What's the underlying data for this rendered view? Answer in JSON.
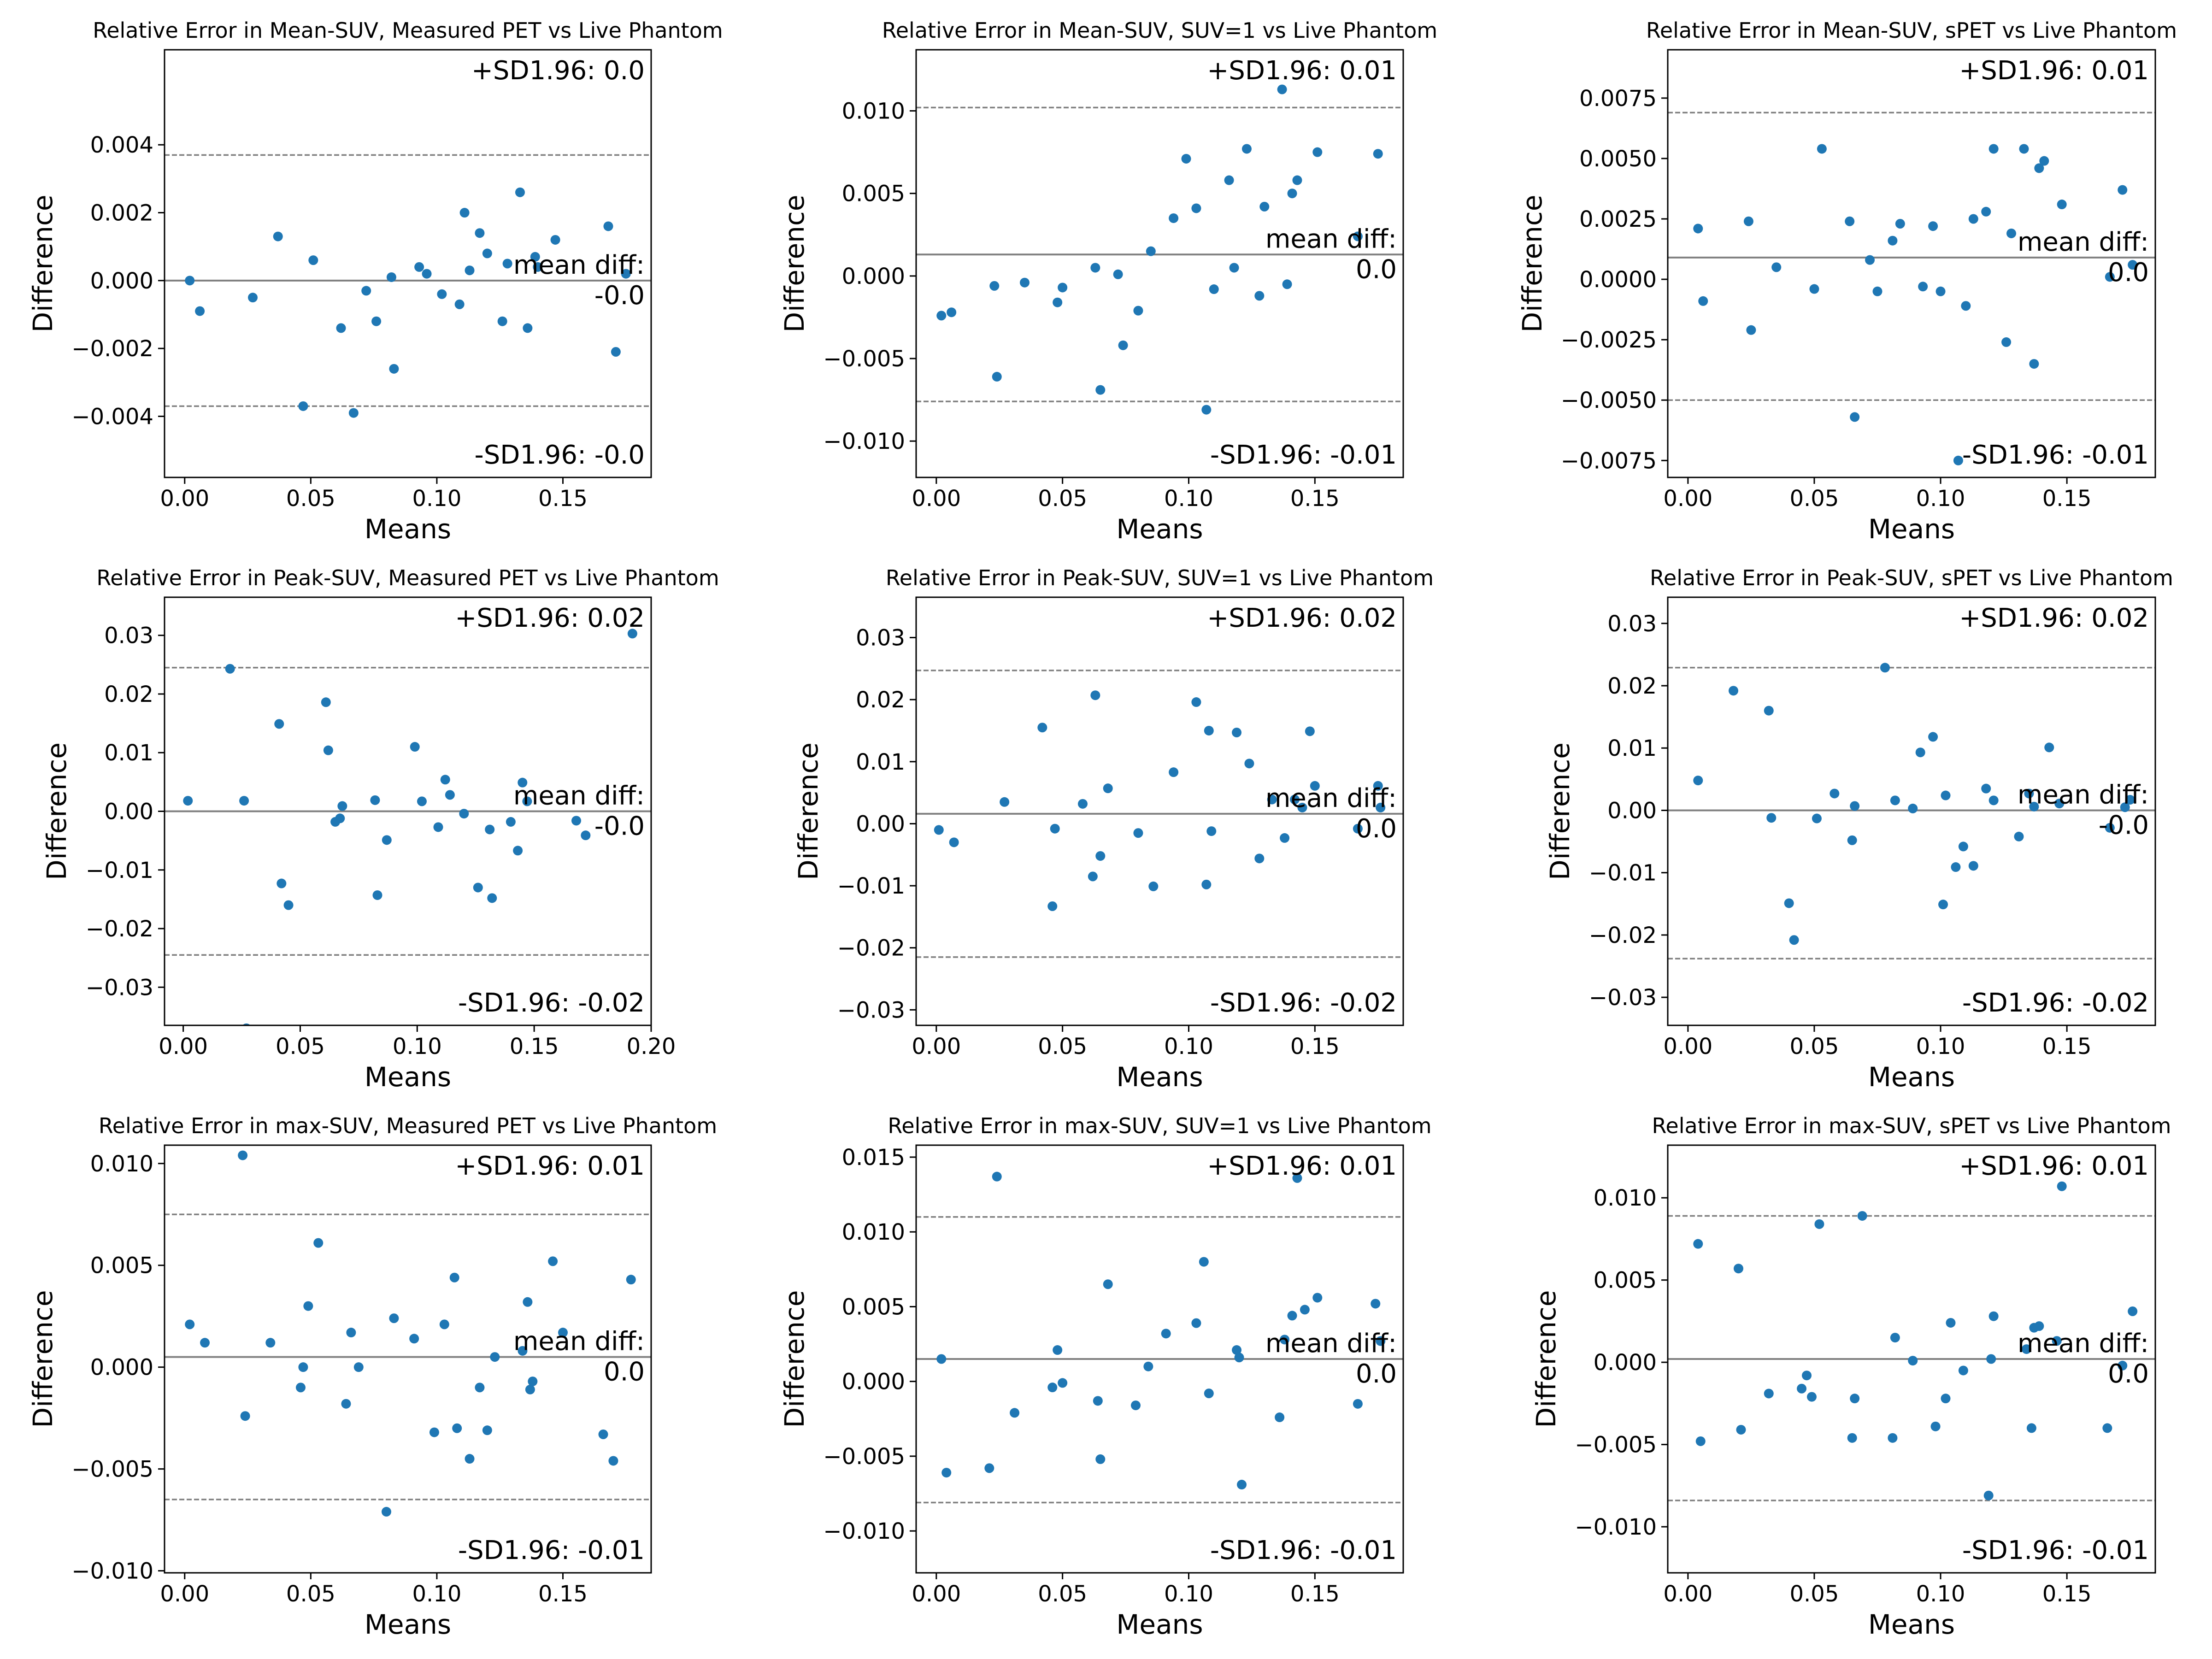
{
  "figure": {
    "background": "#ffffff",
    "point_color": "#1f77b4",
    "line_color": "#808080"
  },
  "chart_data": [
    {
      "type": "scatter",
      "title": "Relative Error in Mean-SUV, Measured PET vs Live Phantom",
      "xlabel": "Means",
      "ylabel": "Difference",
      "xlim": [
        -0.008,
        0.185
      ],
      "ylim": [
        -0.0058,
        0.0068
      ],
      "xticks": [
        0,
        0.05,
        0.1,
        0.15
      ],
      "xtick_labels": [
        "0.00",
        "0.05",
        "0.10",
        "0.15"
      ],
      "yticks": [
        -0.004,
        -0.002,
        0,
        0.002,
        0.004
      ],
      "ytick_labels": [
        "−0.004",
        "−0.002",
        "0.000",
        "0.002",
        "0.004"
      ],
      "mean_diff": 0.0,
      "upper_sd": 0.0037,
      "lower_sd": -0.0037,
      "upper_label": "+SD1.96: 0.0",
      "mean_label_1": "mean diff:",
      "mean_label_2": "-0.0",
      "lower_label": "-SD1.96: -0.0",
      "x": [
        0.002,
        0.006,
        0.027,
        0.037,
        0.047,
        0.051,
        0.062,
        0.067,
        0.072,
        0.076,
        0.082,
        0.083,
        0.093,
        0.096,
        0.102,
        0.109,
        0.111,
        0.113,
        0.117,
        0.12,
        0.126,
        0.128,
        0.133,
        0.136,
        0.139,
        0.14,
        0.147,
        0.168,
        0.171,
        0.175
      ],
      "y": [
        0.0,
        -0.0009,
        -0.0005,
        0.0013,
        -0.0037,
        0.0006,
        -0.0014,
        -0.0039,
        -0.0003,
        -0.0012,
        0.0001,
        -0.0026,
        0.0004,
        0.0002,
        -0.0004,
        -0.0007,
        0.002,
        0.0003,
        0.0014,
        0.0008,
        -0.0012,
        0.0005,
        0.0026,
        -0.0014,
        0.0007,
        0.0004,
        0.0012,
        0.0016,
        -0.0021,
        0.0002
      ]
    },
    {
      "type": "scatter",
      "title": "Relative Error in Mean-SUV, SUV=1 vs Live Phantom",
      "xlabel": "Means",
      "ylabel": "Difference",
      "xlim": [
        -0.008,
        0.185
      ],
      "ylim": [
        -0.0122,
        0.0137
      ],
      "xticks": [
        0,
        0.05,
        0.1,
        0.15
      ],
      "xtick_labels": [
        "0.00",
        "0.05",
        "0.10",
        "0.15"
      ],
      "yticks": [
        -0.01,
        -0.005,
        0,
        0.005,
        0.01
      ],
      "ytick_labels": [
        "−0.010",
        "−0.005",
        "0.000",
        "0.005",
        "0.010"
      ],
      "mean_diff": 0.0013,
      "upper_sd": 0.0102,
      "lower_sd": -0.0076,
      "upper_label": "+SD1.96: 0.01",
      "mean_label_1": "mean diff:",
      "mean_label_2": "0.0",
      "lower_label": "-SD1.96: -0.01",
      "x": [
        0.002,
        0.006,
        0.023,
        0.024,
        0.035,
        0.048,
        0.05,
        0.063,
        0.065,
        0.072,
        0.074,
        0.08,
        0.085,
        0.094,
        0.099,
        0.103,
        0.107,
        0.11,
        0.116,
        0.118,
        0.123,
        0.128,
        0.13,
        0.137,
        0.139,
        0.141,
        0.143,
        0.151,
        0.167,
        0.175
      ],
      "y": [
        -0.0024,
        -0.0022,
        -0.0006,
        -0.0061,
        -0.0004,
        -0.0016,
        -0.0007,
        0.0005,
        -0.0069,
        0.0001,
        -0.0042,
        -0.0021,
        0.0015,
        0.0035,
        0.0071,
        0.0041,
        -0.0081,
        -0.0008,
        0.0058,
        0.0005,
        0.0077,
        -0.0012,
        0.0042,
        0.0113,
        -0.0005,
        0.005,
        0.0058,
        0.0075,
        0.0024,
        0.0074
      ]
    },
    {
      "type": "scatter",
      "title": "Relative Error in Mean-SUV, sPET vs Live Phantom",
      "xlabel": "Means",
      "ylabel": "Difference",
      "xlim": [
        -0.008,
        0.185
      ],
      "ylim": [
        -0.0082,
        0.0095
      ],
      "xticks": [
        0,
        0.05,
        0.1,
        0.15
      ],
      "xtick_labels": [
        "0.00",
        "0.05",
        "0.10",
        "0.15"
      ],
      "yticks": [
        -0.0075,
        -0.005,
        -0.0025,
        0,
        0.0025,
        0.005,
        0.0075
      ],
      "ytick_labels": [
        "−0.0075",
        "−0.0050",
        "−0.0025",
        "0.0000",
        "0.0025",
        "0.0050",
        "0.0075"
      ],
      "mean_diff": 0.0009,
      "upper_sd": 0.0069,
      "lower_sd": -0.005,
      "upper_label": "+SD1.96: 0.01",
      "mean_label_1": "mean diff:",
      "mean_label_2": "0.0",
      "lower_label": "-SD1.96: -0.01",
      "x": [
        0.004,
        0.006,
        0.024,
        0.025,
        0.035,
        0.05,
        0.053,
        0.064,
        0.066,
        0.072,
        0.075,
        0.081,
        0.084,
        0.093,
        0.097,
        0.1,
        0.107,
        0.11,
        0.113,
        0.118,
        0.121,
        0.126,
        0.128,
        0.133,
        0.137,
        0.139,
        0.141,
        0.148,
        0.167,
        0.172,
        0.176
      ],
      "y": [
        0.0021,
        -0.0009,
        0.0024,
        -0.0021,
        0.0005,
        -0.0004,
        0.0054,
        0.0024,
        -0.0057,
        0.0008,
        -0.0005,
        0.0016,
        0.0023,
        -0.0003,
        0.0022,
        -0.0005,
        -0.0075,
        -0.0011,
        0.0025,
        0.0028,
        0.0054,
        -0.0026,
        0.0019,
        0.0054,
        -0.0035,
        0.0046,
        0.0049,
        0.0031,
        0.0001,
        0.0037,
        0.0006
      ]
    },
    {
      "type": "scatter",
      "title": "Relative Error in Peak-SUV, Measured PET vs Live Phantom",
      "xlabel": "Means",
      "ylabel": "Difference",
      "xlim": [
        -0.008,
        0.2
      ],
      "ylim": [
        -0.0365,
        0.0365
      ],
      "xticks": [
        0,
        0.05,
        0.1,
        0.15,
        0.2
      ],
      "xtick_labels": [
        "0.00",
        "0.05",
        "0.10",
        "0.15",
        "0.20"
      ],
      "yticks": [
        -0.03,
        -0.02,
        -0.01,
        0,
        0.01,
        0.02,
        0.03
      ],
      "ytick_labels": [
        "−0.03",
        "−0.02",
        "−0.01",
        "0.00",
        "0.01",
        "0.02",
        "0.03"
      ],
      "mean_diff": 0.0,
      "upper_sd": 0.0245,
      "lower_sd": -0.0245,
      "upper_label": "+SD1.96: 0.02",
      "mean_label_1": "mean diff:",
      "mean_label_2": "-0.0",
      "lower_label": "-SD1.96: -0.02",
      "x": [
        0.002,
        0.02,
        0.026,
        0.027,
        0.041,
        0.042,
        0.045,
        0.061,
        0.062,
        0.065,
        0.067,
        0.068,
        0.082,
        0.083,
        0.087,
        0.099,
        0.102,
        0.109,
        0.112,
        0.114,
        0.12,
        0.126,
        0.131,
        0.132,
        0.14,
        0.143,
        0.145,
        0.147,
        0.168,
        0.172,
        0.192
      ],
      "y": [
        0.0018,
        0.0243,
        0.0018,
        -0.037,
        0.0149,
        -0.0123,
        -0.016,
        0.0186,
        0.0104,
        -0.0018,
        -0.0012,
        0.0009,
        0.0019,
        -0.0143,
        -0.0049,
        0.011,
        0.0017,
        -0.0027,
        0.0054,
        0.0028,
        -0.0004,
        -0.013,
        -0.0031,
        -0.0148,
        -0.0018,
        -0.0067,
        0.0049,
        0.0017,
        -0.0016,
        -0.0041,
        0.0303
      ]
    },
    {
      "type": "scatter",
      "title": "Relative Error in Peak-SUV, SUV=1 vs Live Phantom",
      "xlabel": "Means",
      "ylabel": "Difference",
      "xlim": [
        -0.008,
        0.185
      ],
      "ylim": [
        -0.0325,
        0.0365
      ],
      "xticks": [
        0,
        0.05,
        0.1,
        0.15
      ],
      "xtick_labels": [
        "0.00",
        "0.05",
        "0.10",
        "0.15"
      ],
      "yticks": [
        -0.03,
        -0.02,
        -0.01,
        0,
        0.01,
        0.02,
        0.03
      ],
      "ytick_labels": [
        "−0.03",
        "−0.02",
        "−0.01",
        "0.00",
        "0.01",
        "0.02",
        "0.03"
      ],
      "mean_diff": 0.0016,
      "upper_sd": 0.0247,
      "lower_sd": -0.0215,
      "upper_label": "+SD1.96: 0.02",
      "mean_label_1": "mean diff:",
      "mean_label_2": "0.0",
      "lower_label": "-SD1.96: -0.02",
      "x": [
        0.001,
        0.007,
        0.027,
        0.042,
        0.046,
        0.047,
        0.058,
        0.062,
        0.063,
        0.065,
        0.068,
        0.08,
        0.086,
        0.094,
        0.103,
        0.107,
        0.108,
        0.109,
        0.119,
        0.124,
        0.128,
        0.133,
        0.138,
        0.142,
        0.145,
        0.148,
        0.15,
        0.167,
        0.175,
        0.176
      ],
      "y": [
        -0.001,
        -0.003,
        0.0035,
        0.0155,
        -0.0133,
        -0.0008,
        0.0032,
        -0.0085,
        0.0207,
        -0.0052,
        0.0057,
        -0.0015,
        -0.0101,
        0.0083,
        0.0196,
        -0.0098,
        0.015,
        -0.0012,
        0.0147,
        0.0097,
        -0.0056,
        0.0039,
        -0.0023,
        0.0039,
        0.0026,
        0.0149,
        0.0061,
        -0.0008,
        0.0061,
        0.0026
      ]
    },
    {
      "type": "scatter",
      "title": "Relative Error in Peak-SUV, sPET vs Live Phantom",
      "xlabel": "Means",
      "ylabel": "Difference",
      "xlim": [
        -0.008,
        0.185
      ],
      "ylim": [
        -0.0345,
        0.0342
      ],
      "xticks": [
        0,
        0.05,
        0.1,
        0.15
      ],
      "xtick_labels": [
        "0.00",
        "0.05",
        "0.10",
        "0.15"
      ],
      "yticks": [
        -0.03,
        -0.02,
        -0.01,
        0,
        0.01,
        0.02,
        0.03
      ],
      "ytick_labels": [
        "−0.03",
        "−0.02",
        "−0.01",
        "0.00",
        "0.01",
        "0.02",
        "0.03"
      ],
      "mean_diff": 0.0,
      "upper_sd": 0.0229,
      "lower_sd": -0.0238,
      "upper_label": "+SD1.96: 0.02",
      "mean_label_1": "mean diff:",
      "mean_label_2": "-0.0",
      "lower_label": "-SD1.96: -0.02",
      "x": [
        0.004,
        0.018,
        0.032,
        0.033,
        0.04,
        0.042,
        0.051,
        0.058,
        0.065,
        0.066,
        0.078,
        0.082,
        0.089,
        0.092,
        0.097,
        0.101,
        0.102,
        0.106,
        0.109,
        0.113,
        0.118,
        0.121,
        0.131,
        0.135,
        0.137,
        0.143,
        0.147,
        0.167,
        0.173,
        0.175
      ],
      "y": [
        0.0048,
        0.0192,
        0.016,
        -0.0012,
        -0.0149,
        -0.0208,
        -0.0013,
        0.0027,
        -0.0048,
        0.0007,
        0.0229,
        0.0016,
        0.0003,
        0.0093,
        0.0118,
        -0.0151,
        0.0024,
        -0.0091,
        -0.0058,
        -0.0089,
        0.0035,
        0.0016,
        -0.0042,
        0.0027,
        0.0006,
        0.0101,
        0.0011,
        -0.0028,
        0.0005,
        0.0017
      ]
    },
    {
      "type": "scatter",
      "title": "Relative Error in max-SUV, Measured PET vs Live Phantom",
      "xlabel": "Means",
      "ylabel": "Difference",
      "xlim": [
        -0.008,
        0.185
      ],
      "ylim": [
        -0.0101,
        0.0109
      ],
      "xticks": [
        0,
        0.05,
        0.1,
        0.15
      ],
      "xtick_labels": [
        "0.00",
        "0.05",
        "0.10",
        "0.15"
      ],
      "yticks": [
        -0.01,
        -0.005,
        0,
        0.005,
        0.01
      ],
      "ytick_labels": [
        "−0.010",
        "−0.005",
        "0.000",
        "0.005",
        "0.010"
      ],
      "mean_diff": 0.0005,
      "upper_sd": 0.0075,
      "lower_sd": -0.0065,
      "upper_label": "+SD1.96: 0.01",
      "mean_label_1": "mean diff:",
      "mean_label_2": "0.0",
      "lower_label": "-SD1.96: -0.01",
      "x": [
        0.002,
        0.008,
        0.023,
        0.024,
        0.034,
        0.046,
        0.047,
        0.049,
        0.053,
        0.064,
        0.066,
        0.069,
        0.08,
        0.083,
        0.091,
        0.099,
        0.103,
        0.107,
        0.108,
        0.113,
        0.117,
        0.12,
        0.123,
        0.134,
        0.136,
        0.137,
        0.138,
        0.146,
        0.15,
        0.166,
        0.17,
        0.177
      ],
      "y": [
        0.0021,
        0.0012,
        0.0104,
        -0.0024,
        0.0012,
        -0.001,
        0.0,
        0.003,
        0.0061,
        -0.0018,
        0.0017,
        0.0,
        -0.0071,
        0.0024,
        0.0014,
        -0.0032,
        0.0021,
        0.0044,
        -0.003,
        -0.0045,
        -0.001,
        -0.0031,
        0.0005,
        0.0008,
        0.0032,
        -0.0011,
        -0.0007,
        0.0052,
        0.0017,
        -0.0033,
        -0.0046,
        0.0043
      ]
    },
    {
      "type": "scatter",
      "title": "Relative Error in max-SUV, SUV=1 vs Live Phantom",
      "xlabel": "Means",
      "ylabel": "Difference",
      "xlim": [
        -0.008,
        0.185
      ],
      "ylim": [
        -0.0128,
        0.0158
      ],
      "xticks": [
        0,
        0.05,
        0.1,
        0.15
      ],
      "xtick_labels": [
        "0.00",
        "0.05",
        "0.10",
        "0.15"
      ],
      "yticks": [
        -0.01,
        -0.005,
        0,
        0.005,
        0.01,
        0.015
      ],
      "ytick_labels": [
        "−0.010",
        "−0.005",
        "0.000",
        "0.005",
        "0.010",
        "0.015"
      ],
      "mean_diff": 0.0015,
      "upper_sd": 0.011,
      "lower_sd": -0.0081,
      "upper_label": "+SD1.96: 0.01",
      "mean_label_1": "mean diff:",
      "mean_label_2": "0.0",
      "lower_label": "-SD1.96: -0.01",
      "x": [
        0.002,
        0.004,
        0.021,
        0.024,
        0.031,
        0.046,
        0.048,
        0.05,
        0.064,
        0.065,
        0.068,
        0.079,
        0.084,
        0.091,
        0.103,
        0.106,
        0.108,
        0.119,
        0.12,
        0.121,
        0.136,
        0.138,
        0.141,
        0.143,
        0.146,
        0.151,
        0.167,
        0.174,
        0.176
      ],
      "y": [
        0.0015,
        -0.0061,
        -0.0058,
        0.0137,
        -0.0021,
        -0.0004,
        0.0021,
        -0.0001,
        -0.0013,
        -0.0052,
        0.0065,
        -0.0016,
        0.001,
        0.0032,
        0.0039,
        0.008,
        -0.0008,
        0.0021,
        0.0016,
        -0.0069,
        -0.0024,
        0.0028,
        0.0044,
        0.0136,
        0.0048,
        0.0056,
        -0.0015,
        0.0052,
        0.0027
      ]
    },
    {
      "type": "scatter",
      "title": "Relative Error in max-SUV, sPET vs Live Phantom",
      "xlabel": "Means",
      "ylabel": "Difference",
      "xlim": [
        -0.008,
        0.185
      ],
      "ylim": [
        -0.0128,
        0.0132
      ],
      "xticks": [
        0,
        0.05,
        0.1,
        0.15
      ],
      "xtick_labels": [
        "0.00",
        "0.05",
        "0.10",
        "0.15"
      ],
      "yticks": [
        -0.01,
        -0.005,
        0,
        0.005,
        0.01
      ],
      "ytick_labels": [
        "−0.010",
        "−0.005",
        "0.000",
        "0.005",
        "0.010"
      ],
      "mean_diff": 0.0002,
      "upper_sd": 0.0089,
      "lower_sd": -0.0084,
      "upper_label": "+SD1.96: 0.01",
      "mean_label_1": "mean diff:",
      "mean_label_2": "0.0",
      "lower_label": "-SD1.96: -0.01",
      "x": [
        0.004,
        0.005,
        0.02,
        0.021,
        0.032,
        0.045,
        0.047,
        0.049,
        0.052,
        0.065,
        0.066,
        0.069,
        0.081,
        0.082,
        0.089,
        0.098,
        0.102,
        0.104,
        0.109,
        0.119,
        0.12,
        0.121,
        0.134,
        0.136,
        0.137,
        0.139,
        0.146,
        0.148,
        0.166,
        0.172,
        0.176
      ],
      "y": [
        0.0072,
        -0.0048,
        0.0057,
        -0.0041,
        -0.0019,
        -0.0016,
        -0.0008,
        -0.0021,
        0.0084,
        -0.0046,
        -0.0022,
        0.0089,
        -0.0046,
        0.0015,
        0.0001,
        -0.0039,
        -0.0022,
        0.0024,
        -0.0005,
        -0.0081,
        0.0002,
        0.0028,
        0.0008,
        -0.004,
        0.0021,
        0.0022,
        0.0013,
        0.0107,
        -0.004,
        -0.0002,
        0.0031
      ]
    }
  ]
}
